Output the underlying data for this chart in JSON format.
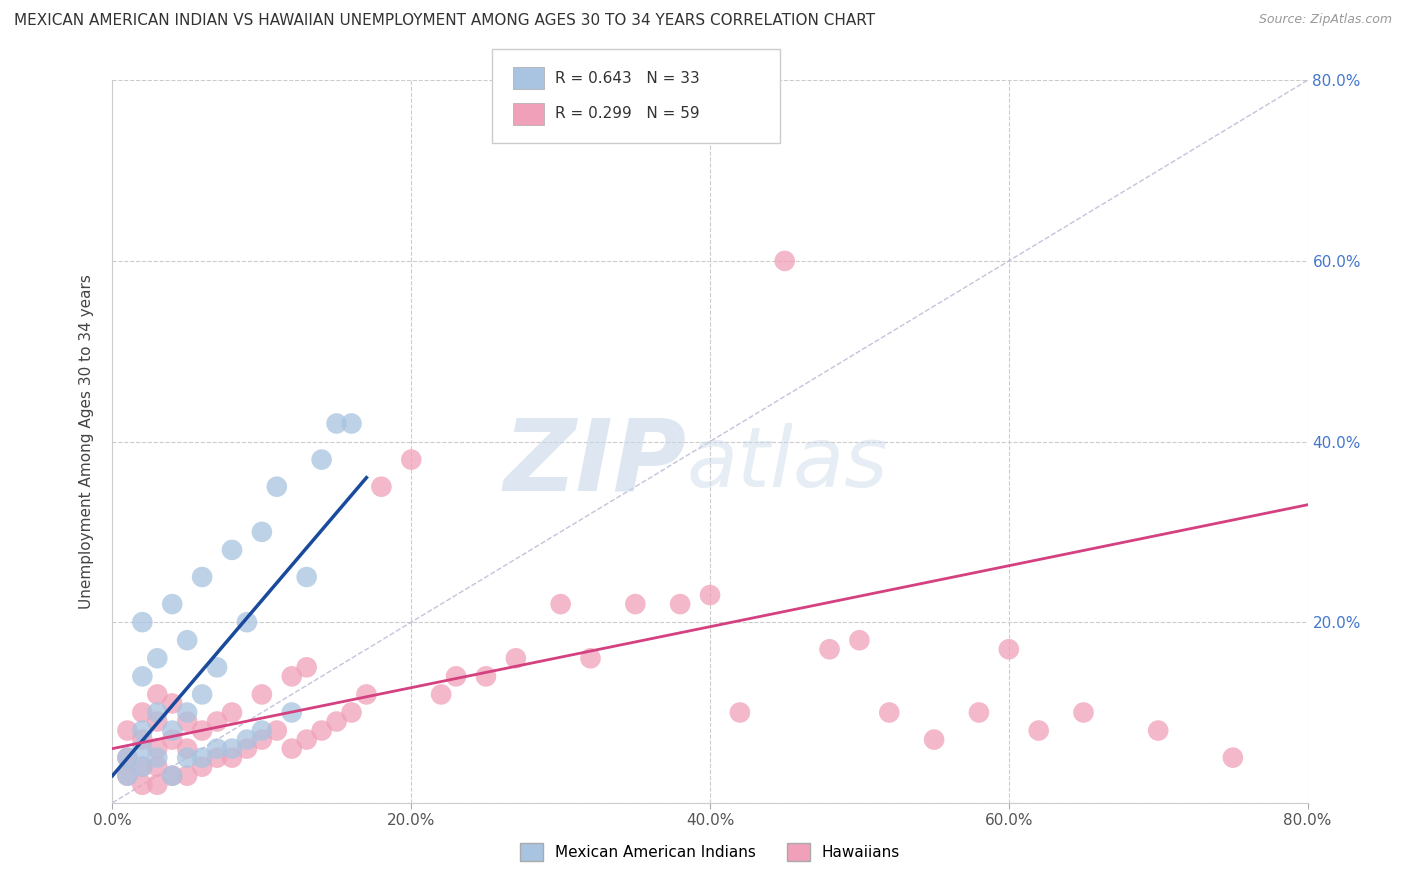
{
  "title": "MEXICAN AMERICAN INDIAN VS HAWAIIAN UNEMPLOYMENT AMONG AGES 30 TO 34 YEARS CORRELATION CHART",
  "source": "Source: ZipAtlas.com",
  "ylabel": "Unemployment Among Ages 30 to 34 years",
  "xlim": [
    0.0,
    0.8
  ],
  "ylim": [
    0.0,
    0.8
  ],
  "xticks": [
    0.0,
    0.2,
    0.4,
    0.6,
    0.8
  ],
  "yticks": [
    0.0,
    0.2,
    0.4,
    0.6,
    0.8
  ],
  "xtick_labels": [
    "0.0%",
    "20.0%",
    "40.0%",
    "60.0%",
    "80.0%"
  ],
  "ytick_labels_right": [
    "",
    "20.0%",
    "40.0%",
    "60.0%",
    "80.0%"
  ],
  "legend_r1": "R = 0.643   N = 33",
  "legend_r2": "R = 0.299   N = 59",
  "legend_label1": "Mexican American Indians",
  "legend_label2": "Hawaiians",
  "blue_color": "#a8c4e0",
  "blue_line_color": "#1a4a9c",
  "pink_color": "#f0a0b8",
  "pink_line_color": "#d44080",
  "blue_scatter_x": [
    0.01,
    0.01,
    0.02,
    0.02,
    0.02,
    0.02,
    0.02,
    0.03,
    0.03,
    0.03,
    0.04,
    0.04,
    0.04,
    0.05,
    0.05,
    0.05,
    0.06,
    0.06,
    0.06,
    0.07,
    0.07,
    0.08,
    0.08,
    0.09,
    0.09,
    0.1,
    0.1,
    0.11,
    0.12,
    0.13,
    0.14,
    0.15,
    0.16
  ],
  "blue_scatter_y": [
    0.03,
    0.05,
    0.04,
    0.06,
    0.08,
    0.14,
    0.2,
    0.05,
    0.1,
    0.16,
    0.03,
    0.08,
    0.22,
    0.05,
    0.1,
    0.18,
    0.05,
    0.12,
    0.25,
    0.06,
    0.15,
    0.06,
    0.28,
    0.07,
    0.2,
    0.08,
    0.3,
    0.35,
    0.1,
    0.25,
    0.38,
    0.42,
    0.42
  ],
  "pink_scatter_x": [
    0.01,
    0.01,
    0.01,
    0.02,
    0.02,
    0.02,
    0.02,
    0.03,
    0.03,
    0.03,
    0.03,
    0.03,
    0.04,
    0.04,
    0.04,
    0.05,
    0.05,
    0.05,
    0.06,
    0.06,
    0.07,
    0.07,
    0.08,
    0.08,
    0.09,
    0.1,
    0.1,
    0.11,
    0.12,
    0.12,
    0.13,
    0.13,
    0.14,
    0.15,
    0.16,
    0.17,
    0.18,
    0.2,
    0.22,
    0.23,
    0.25,
    0.27,
    0.3,
    0.32,
    0.35,
    0.38,
    0.4,
    0.42,
    0.45,
    0.48,
    0.5,
    0.52,
    0.55,
    0.58,
    0.6,
    0.62,
    0.65,
    0.7,
    0.75
  ],
  "pink_scatter_y": [
    0.03,
    0.05,
    0.08,
    0.02,
    0.04,
    0.07,
    0.1,
    0.02,
    0.04,
    0.06,
    0.09,
    0.12,
    0.03,
    0.07,
    0.11,
    0.03,
    0.06,
    0.09,
    0.04,
    0.08,
    0.05,
    0.09,
    0.05,
    0.1,
    0.06,
    0.07,
    0.12,
    0.08,
    0.06,
    0.14,
    0.07,
    0.15,
    0.08,
    0.09,
    0.1,
    0.12,
    0.35,
    0.38,
    0.12,
    0.14,
    0.14,
    0.16,
    0.22,
    0.16,
    0.22,
    0.22,
    0.23,
    0.1,
    0.6,
    0.17,
    0.18,
    0.1,
    0.07,
    0.1,
    0.17,
    0.08,
    0.1,
    0.08,
    0.05
  ],
  "blue_line_x0": 0.0,
  "blue_line_x1": 0.17,
  "blue_line_y0": 0.03,
  "blue_line_y1": 0.36,
  "pink_line_x0": 0.0,
  "pink_line_x1": 0.8,
  "pink_line_y0": 0.06,
  "pink_line_y1": 0.33
}
